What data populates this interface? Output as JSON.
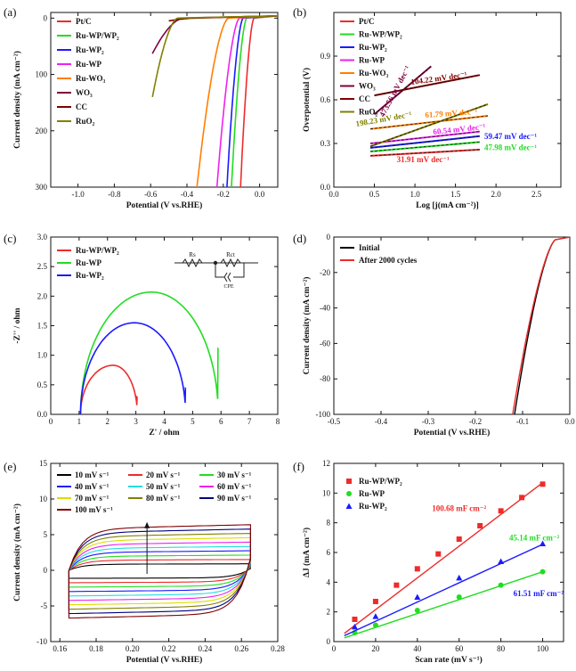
{
  "chart_data": [
    {
      "id": "a",
      "panel_label": "(a)",
      "type": "line",
      "xlabel": "Potential (V vs.RHE)",
      "ylabel": "Current density (mA cm⁻²)",
      "xlim": [
        -1.15,
        0.1
      ],
      "ylim": [
        -300,
        10
      ],
      "xticks": [
        -1.0,
        -0.8,
        -0.6,
        -0.4,
        -0.2,
        0.0
      ],
      "xtick_labels": [
        "-1.0",
        "-0.8",
        "-0.6",
        "-0.4",
        "-0.2",
        "0.0"
      ],
      "yticks": [
        0,
        -100,
        -200,
        -300
      ],
      "ytick_labels": [
        "0",
        "100",
        "200",
        "300"
      ],
      "series": [
        {
          "name": "Pt/C",
          "color": "#ef2b2b",
          "onset": -0.03,
          "end_x": -0.105,
          "end_y": -300
        },
        {
          "name": "Ru-WP/WP₂",
          "color": "#22dd22",
          "onset": -0.07,
          "end_x": -0.155,
          "end_y": -300
        },
        {
          "name": "Ru-WP₂",
          "color": "#1a1aff",
          "onset": -0.09,
          "end_x": -0.18,
          "end_y": -300
        },
        {
          "name": "Ru-WP",
          "color": "#ee22ee",
          "onset": -0.11,
          "end_x": -0.235,
          "end_y": -300
        },
        {
          "name": "Ru-WO₃",
          "color": "#ff7f00",
          "onset": -0.17,
          "end_x": -0.345,
          "end_y": -300
        },
        {
          "name": "WO₃",
          "color": "#800040",
          "onset": -0.42,
          "end_x": -0.59,
          "end_y": -63
        },
        {
          "name": "CC",
          "color": "#800000",
          "onset": -0.35,
          "end_x": -0.5,
          "end_y": -5
        },
        {
          "name": "RuO₂",
          "color": "#808000",
          "onset": -0.45,
          "end_x": -0.59,
          "end_y": -140
        }
      ]
    },
    {
      "id": "b",
      "panel_label": "(b)",
      "type": "line",
      "xlabel": "Log [j(mA cm⁻²)]",
      "ylabel": "Overpotential (V)",
      "xlim": [
        0,
        2.8
      ],
      "ylim": [
        0,
        1.2
      ],
      "xticks": [
        0,
        0.5,
        1.0,
        1.5,
        2.0,
        2.5
      ],
      "xtick_labels": [
        "0.0",
        "0.5",
        "1.0",
        "1.5",
        "2.0",
        "2.5"
      ],
      "yticks": [
        0.0,
        0.3,
        0.6,
        0.9
      ],
      "ytick_labels": [
        "0.0",
        "0.3",
        "0.6",
        "0.9"
      ],
      "series": [
        {
          "name": "Pt/C",
          "color": "#ef2b2b",
          "x": [
            0.45,
            1.8
          ],
          "y": [
            0.215,
            0.258
          ],
          "tafel": "31.91 mV dec⁻¹"
        },
        {
          "name": "Ru-WP/WP₂",
          "color": "#22dd22",
          "x": [
            0.45,
            1.8
          ],
          "y": [
            0.245,
            0.31
          ],
          "tafel": "47.98 mV dec⁻¹"
        },
        {
          "name": "Ru-WP₂",
          "color": "#1a1aff",
          "x": [
            0.45,
            1.8
          ],
          "y": [
            0.27,
            0.35
          ],
          "tafel": "59.47 mV dec⁻¹"
        },
        {
          "name": "Ru-WP",
          "color": "#ee22ee",
          "x": [
            0.45,
            1.8
          ],
          "y": [
            0.3,
            0.382
          ],
          "tafel": "60.54 mV dec⁻¹"
        },
        {
          "name": "Ru-WO₃",
          "color": "#ff7f00",
          "x": [
            0.45,
            1.9
          ],
          "y": [
            0.4,
            0.49
          ],
          "tafel": "61.79 mV dec⁻¹"
        },
        {
          "name": "WO₃",
          "color": "#800040",
          "x": [
            0.5,
            1.2
          ],
          "y": [
            0.5,
            0.83
          ],
          "tafel": "473.56 mV dec⁻¹"
        },
        {
          "name": "CC",
          "color": "#800000",
          "x": [
            0.5,
            1.8
          ],
          "y": [
            0.63,
            0.77
          ],
          "tafel": "104.22 mV dec⁻¹"
        },
        {
          "name": "RuO₂",
          "color": "#808000",
          "x": [
            0.45,
            1.9
          ],
          "y": [
            0.28,
            0.57
          ],
          "tafel": "198.23 mV dec⁻¹"
        }
      ]
    },
    {
      "id": "c",
      "panel_label": "(c)",
      "type": "line",
      "xlabel": "Z' / ohm",
      "ylabel": "-Z'' / ohm",
      "xlim": [
        0,
        8
      ],
      "ylim": [
        0,
        3
      ],
      "xticks": [
        0,
        1,
        2,
        3,
        4,
        5,
        6,
        7,
        8
      ],
      "xtick_labels": [
        "0",
        "1",
        "2",
        "3",
        "4",
        "5",
        "6",
        "7",
        "8"
      ],
      "yticks": [
        0,
        0.5,
        1.0,
        1.5,
        2.0,
        2.5,
        3.0
      ],
      "ytick_labels": [
        "0.0",
        "0.5",
        "1.0",
        "1.5",
        "2.0",
        "2.5",
        "3.0"
      ],
      "circuit_labels": [
        "Rs",
        "Rct",
        "CPE"
      ],
      "series": [
        {
          "name": "Ru-WP/WP₂",
          "color": "#ef2b2b",
          "start": 1.05,
          "peak_x": 2.2,
          "peak_y": 0.83,
          "end_x": 3.05,
          "end_y": 0.3
        },
        {
          "name": "Ru-WP",
          "color": "#22dd22",
          "start": 1.05,
          "peak_x": 3.55,
          "peak_y": 2.07,
          "end_x": 5.9,
          "end_y": 1.12
        },
        {
          "name": "Ru-WP₂",
          "color": "#1a1aff",
          "start": 1.05,
          "peak_x": 2.95,
          "peak_y": 1.55,
          "end_x": 4.75,
          "end_y": 0.45
        }
      ]
    },
    {
      "id": "d",
      "panel_label": "(d)",
      "type": "line",
      "xlabel": "Potential (V vs.RHE)",
      "ylabel": "Current density (mA cm⁻²)",
      "xlim": [
        -0.5,
        0.0
      ],
      "ylim": [
        -100,
        0
      ],
      "xticks": [
        -0.5,
        -0.4,
        -0.3,
        -0.2,
        -0.1,
        0.0
      ],
      "xtick_labels": [
        "-0.5",
        "-0.4",
        "-0.3",
        "-0.2",
        "-0.1",
        "0.0"
      ],
      "yticks": [
        0,
        -20,
        -40,
        -60,
        -80,
        -100
      ],
      "ytick_labels": [
        "0",
        "-20",
        "-40",
        "-60",
        "-80",
        "-100"
      ],
      "series": [
        {
          "name": "Initial",
          "color": "#000000",
          "end_x": -0.117
        },
        {
          "name": "After 2000 cycles",
          "color": "#ef2b2b",
          "end_x": -0.121
        }
      ]
    },
    {
      "id": "e",
      "panel_label": "(e)",
      "type": "line",
      "xlabel": "Potential (V vs.RHE)",
      "ylabel": "Current density (mA cm⁻²)",
      "xlim": [
        0.155,
        0.28
      ],
      "ylim": [
        -10,
        15
      ],
      "xticks": [
        0.16,
        0.18,
        0.2,
        0.22,
        0.24,
        0.26,
        0.28
      ],
      "xtick_labels": [
        "0.16",
        "0.18",
        "0.20",
        "0.22",
        "0.24",
        "0.26",
        "0.28"
      ],
      "yticks": [
        -10,
        -5,
        0,
        5,
        10,
        15
      ],
      "ytick_labels": [
        "-10",
        "-5",
        "0",
        "5",
        "10",
        "15"
      ],
      "series": [
        {
          "name": "10 mV s⁻¹",
          "color": "#000000",
          "scan_rate": 10
        },
        {
          "name": "20 mV s⁻¹",
          "color": "#ef2b2b",
          "scan_rate": 20
        },
        {
          "name": "30 mV s⁻¹",
          "color": "#22dd22",
          "scan_rate": 30
        },
        {
          "name": "40 mV s⁻¹",
          "color": "#1a1aff",
          "scan_rate": 40
        },
        {
          "name": "50 mV s⁻¹",
          "color": "#22dddd",
          "scan_rate": 50
        },
        {
          "name": "60 mV s⁻¹",
          "color": "#ee22ee",
          "scan_rate": 60
        },
        {
          "name": "70 mV s⁻¹",
          "color": "#dddd00",
          "scan_rate": 70
        },
        {
          "name": "80 mV s⁻¹",
          "color": "#808000",
          "scan_rate": 80
        },
        {
          "name": "90 mV s⁻¹",
          "color": "#000080",
          "scan_rate": 90
        },
        {
          "name": "100 mV s⁻¹",
          "color": "#800000",
          "scan_rate": 100
        }
      ]
    },
    {
      "id": "f",
      "panel_label": "(f)",
      "type": "scatter",
      "xlabel": "Scan rate (mV s⁻¹)",
      "ylabel": "ΔJ (mA cm⁻²)",
      "xlim": [
        0,
        110
      ],
      "ylim": [
        0,
        12
      ],
      "xticks": [
        0,
        20,
        40,
        60,
        80,
        100
      ],
      "xtick_labels": [
        "0",
        "20",
        "40",
        "60",
        "80",
        "100"
      ],
      "yticks": [
        0,
        2,
        4,
        6,
        8,
        10,
        12
      ],
      "ytick_labels": [
        "0",
        "2",
        "4",
        "6",
        "8",
        "10",
        "12"
      ],
      "series": [
        {
          "name": "Ru-WP/WP₂",
          "color": "#ef2b2b",
          "marker": "square",
          "x": [
            10,
            20,
            30,
            40,
            50,
            60,
            70,
            80,
            90,
            100
          ],
          "y": [
            1.5,
            2.7,
            3.8,
            4.9,
            5.9,
            6.9,
            7.8,
            8.8,
            9.7,
            10.6
          ],
          "fit": [
            0.55,
            10.7
          ],
          "label": "100.68 mF cm⁻²"
        },
        {
          "name": "Ru-WP",
          "color": "#22dd22",
          "marker": "circle",
          "x": [
            10,
            20,
            40,
            60,
            80,
            100
          ],
          "y": [
            0.6,
            1.1,
            2.1,
            3.0,
            3.8,
            4.7
          ],
          "fit": [
            0.25,
            4.7
          ],
          "label": "45.14 mF cm⁻²"
        },
        {
          "name": "Ru-WP₂",
          "color": "#1a1aff",
          "marker": "triangle",
          "x": [
            10,
            20,
            40,
            60,
            80,
            100
          ],
          "y": [
            1.0,
            1.7,
            3.0,
            4.3,
            5.4,
            6.6
          ],
          "fit": [
            0.4,
            6.55
          ],
          "label": "61.51 mF cm⁻²"
        }
      ]
    }
  ]
}
